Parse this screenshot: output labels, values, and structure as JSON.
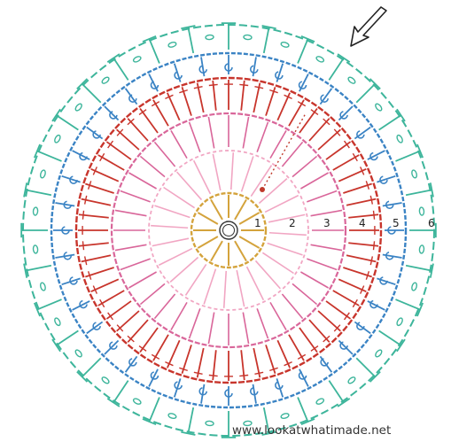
{
  "diagram": {
    "rounds": [
      {
        "label": "1",
        "color": "#d4a33c"
      },
      {
        "label": "2",
        "color": "#f1a6c3"
      },
      {
        "label": "3",
        "color": "#d9669a"
      },
      {
        "label": "4",
        "color": "#c8352c"
      },
      {
        "label": "5",
        "color": "#3a83c4"
      },
      {
        "label": "6",
        "color": "#3db59b"
      }
    ],
    "arrow_icon": "arrow-down-left-icon",
    "watermark": "www.lookatwhatimade.net"
  }
}
